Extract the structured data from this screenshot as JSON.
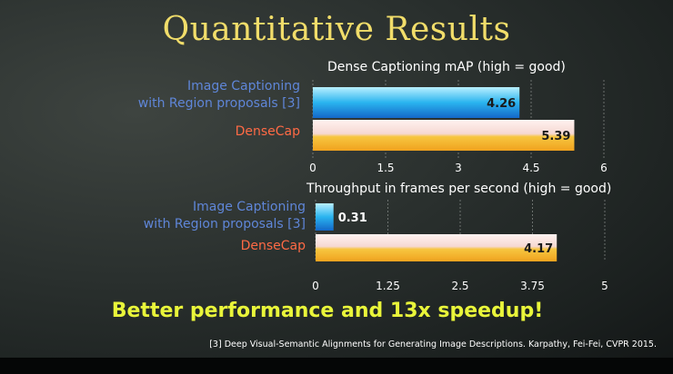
{
  "title": "Quantitative Results",
  "tagline": "Better performance and 13x speedup!",
  "footnote": "[3] Deep Visual-Semantic Alignments for Generating Image Descriptions. Karpathy, Fei-Fei, CVPR 2015.",
  "colors": {
    "title": "#f1dd6a",
    "tagline": "#e9f53a",
    "baseline_bar": "#2ab4ef",
    "densecap_bar": "#f0a21e",
    "baseline_label": "#5f86d8",
    "densecap_label": "#ff6a45"
  },
  "chart_data": [
    {
      "type": "bar",
      "orientation": "horizontal",
      "title": "Dense Captioning mAP (high = good)",
      "categories": [
        "Image Captioning\nwith Region proposals [3]",
        "DenseCap"
      ],
      "values": [
        4.26,
        5.39
      ],
      "value_labels": [
        "4.26",
        "5.39"
      ],
      "xlim": [
        0,
        6
      ],
      "xticks": [
        "0",
        "1.5",
        "3",
        "4.5",
        "6"
      ],
      "grid": true
    },
    {
      "type": "bar",
      "orientation": "horizontal",
      "title": "Throughput in frames per second (high = good)",
      "categories": [
        "Image Captioning\nwith Region proposals [3]",
        "DenseCap"
      ],
      "values": [
        0.31,
        4.17
      ],
      "value_labels": [
        "0.31",
        "4.17"
      ],
      "xlim": [
        0,
        5
      ],
      "xticks": [
        "0",
        "1.25",
        "2.5",
        "3.75",
        "5"
      ],
      "grid": true
    }
  ]
}
